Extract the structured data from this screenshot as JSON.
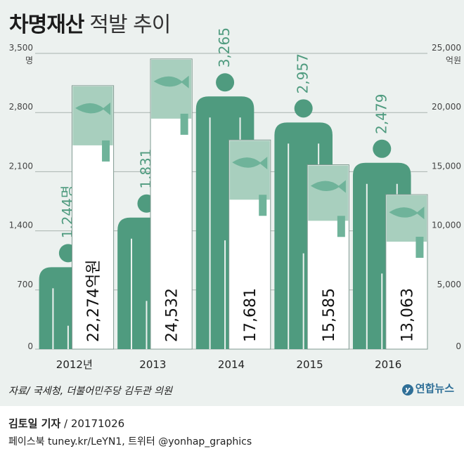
{
  "title_bold": "차명재산",
  "title_light": "적발 추이",
  "source": "자료/ 국세청, 더불어민주당 김두관 의원",
  "logo_text": "연합뉴스",
  "byline_name": "김토일 기자",
  "byline_date": " / 20171026",
  "social": "페이스북 tuney.kr/LeYN1, 트위터 @yonhap_graphics",
  "colors": {
    "person": "#4f9b7f",
    "box_top": "#a8cfbe",
    "fish": "#6fb39a",
    "panel": "#ecf1ef"
  },
  "chart_data": {
    "type": "bar",
    "categories": [
      "2012년",
      "2013",
      "2014",
      "2015",
      "2016"
    ],
    "series": [
      {
        "values": [
          1244,
          1831,
          3265,
          2957,
          2479
        ],
        "labels": [
          "1,244명",
          "1,831",
          "3,265",
          "2,957",
          "2,479"
        ],
        "axis": "left"
      },
      {
        "values": [
          22274,
          24532,
          17681,
          15585,
          13063
        ],
        "labels": [
          "22,274억원",
          "24,532",
          "17,681",
          "15,585",
          "13,063"
        ],
        "axis": "right"
      }
    ],
    "left_axis": {
      "unit": "명",
      "min": 0,
      "max": 3500,
      "ticks": [
        "0",
        "700",
        "1,400",
        "2,100",
        "2,800",
        "3,500"
      ]
    },
    "right_axis": {
      "unit": "억원",
      "min": 0,
      "max": 25000,
      "ticks": [
        "0",
        "5,000",
        "10,000",
        "15,000",
        "20,000",
        "25,000"
      ]
    },
    "grid": true
  }
}
